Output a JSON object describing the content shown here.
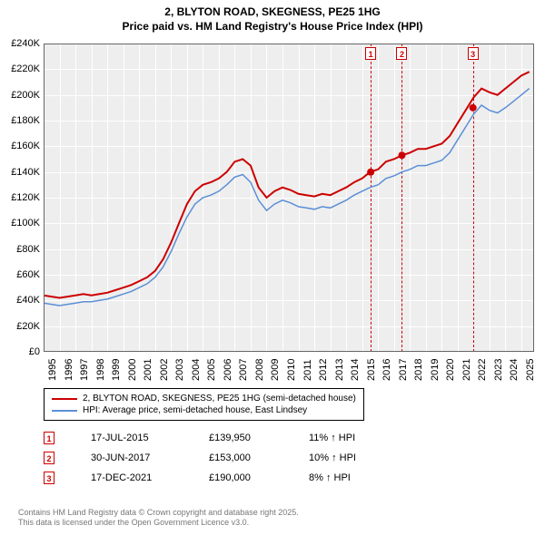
{
  "title_line1": "2, BLYTON ROAD, SKEGNESS, PE25 1HG",
  "title_line2": "Price paid vs. HM Land Registry's House Price Index (HPI)",
  "chart": {
    "type": "line",
    "background_color": "#eeeeee",
    "grid_color": "#ffffff",
    "border_color": "#666666",
    "xlim": [
      1995,
      2025.8
    ],
    "ylim": [
      0,
      240000
    ],
    "ytick_step": 20000,
    "ytick_labels": [
      "£0",
      "£20K",
      "£40K",
      "£60K",
      "£80K",
      "£100K",
      "£120K",
      "£140K",
      "£160K",
      "£180K",
      "£200K",
      "£220K",
      "£240K"
    ],
    "xtick_step": 1,
    "xtick_labels": [
      "1995",
      "1996",
      "1997",
      "1998",
      "1999",
      "2000",
      "2001",
      "2002",
      "2003",
      "2004",
      "2005",
      "2006",
      "2007",
      "2008",
      "2009",
      "2010",
      "2011",
      "2012",
      "2013",
      "2014",
      "2015",
      "2016",
      "2017",
      "2018",
      "2019",
      "2020",
      "2021",
      "2022",
      "2023",
      "2024",
      "2025"
    ],
    "series": [
      {
        "name": "2, BLYTON ROAD, SKEGNESS, PE25 1HG (semi-detached house)",
        "color": "#cc0000",
        "line_width": 2,
        "xy": [
          [
            1995,
            44000
          ],
          [
            1995.5,
            43000
          ],
          [
            1996,
            42000
          ],
          [
            1996.5,
            43000
          ],
          [
            1997,
            44000
          ],
          [
            1997.5,
            45000
          ],
          [
            1998,
            44000
          ],
          [
            1998.5,
            45000
          ],
          [
            1999,
            46000
          ],
          [
            1999.5,
            48000
          ],
          [
            2000,
            50000
          ],
          [
            2000.5,
            52000
          ],
          [
            2001,
            55000
          ],
          [
            2001.5,
            58000
          ],
          [
            2002,
            63000
          ],
          [
            2002.5,
            72000
          ],
          [
            2003,
            85000
          ],
          [
            2003.5,
            100000
          ],
          [
            2004,
            115000
          ],
          [
            2004.5,
            125000
          ],
          [
            2005,
            130000
          ],
          [
            2005.5,
            132000
          ],
          [
            2006,
            135000
          ],
          [
            2006.5,
            140000
          ],
          [
            2007,
            148000
          ],
          [
            2007.5,
            150000
          ],
          [
            2008,
            145000
          ],
          [
            2008.5,
            128000
          ],
          [
            2009,
            120000
          ],
          [
            2009.5,
            125000
          ],
          [
            2010,
            128000
          ],
          [
            2010.5,
            126000
          ],
          [
            2011,
            123000
          ],
          [
            2011.5,
            122000
          ],
          [
            2012,
            121000
          ],
          [
            2012.5,
            123000
          ],
          [
            2013,
            122000
          ],
          [
            2013.5,
            125000
          ],
          [
            2014,
            128000
          ],
          [
            2014.5,
            132000
          ],
          [
            2015,
            135000
          ],
          [
            2015.5,
            140000
          ],
          [
            2016,
            142000
          ],
          [
            2016.5,
            148000
          ],
          [
            2017,
            150000
          ],
          [
            2017.5,
            153000
          ],
          [
            2018,
            155000
          ],
          [
            2018.5,
            158000
          ],
          [
            2019,
            158000
          ],
          [
            2019.5,
            160000
          ],
          [
            2020,
            162000
          ],
          [
            2020.5,
            168000
          ],
          [
            2021,
            178000
          ],
          [
            2021.5,
            188000
          ],
          [
            2022,
            198000
          ],
          [
            2022.5,
            205000
          ],
          [
            2023,
            202000
          ],
          [
            2023.5,
            200000
          ],
          [
            2024,
            205000
          ],
          [
            2024.5,
            210000
          ],
          [
            2025,
            215000
          ],
          [
            2025.5,
            218000
          ]
        ],
        "markers": [
          {
            "id": "1",
            "x": 2015.54,
            "y": 139950
          },
          {
            "id": "2",
            "x": 2017.5,
            "y": 153000
          },
          {
            "id": "3",
            "x": 2021.96,
            "y": 190000
          }
        ]
      },
      {
        "name": "HPI: Average price, semi-detached house, East Lindsey",
        "color": "#5b8fd6",
        "line_width": 1.5,
        "xy": [
          [
            1995,
            38000
          ],
          [
            1995.5,
            37000
          ],
          [
            1996,
            36000
          ],
          [
            1996.5,
            37000
          ],
          [
            1997,
            38000
          ],
          [
            1997.5,
            39000
          ],
          [
            1998,
            39000
          ],
          [
            1998.5,
            40000
          ],
          [
            1999,
            41000
          ],
          [
            1999.5,
            43000
          ],
          [
            2000,
            45000
          ],
          [
            2000.5,
            47000
          ],
          [
            2001,
            50000
          ],
          [
            2001.5,
            53000
          ],
          [
            2002,
            58000
          ],
          [
            2002.5,
            66000
          ],
          [
            2003,
            78000
          ],
          [
            2003.5,
            92000
          ],
          [
            2004,
            105000
          ],
          [
            2004.5,
            115000
          ],
          [
            2005,
            120000
          ],
          [
            2005.5,
            122000
          ],
          [
            2006,
            125000
          ],
          [
            2006.5,
            130000
          ],
          [
            2007,
            136000
          ],
          [
            2007.5,
            138000
          ],
          [
            2008,
            132000
          ],
          [
            2008.5,
            118000
          ],
          [
            2009,
            110000
          ],
          [
            2009.5,
            115000
          ],
          [
            2010,
            118000
          ],
          [
            2010.5,
            116000
          ],
          [
            2011,
            113000
          ],
          [
            2011.5,
            112000
          ],
          [
            2012,
            111000
          ],
          [
            2012.5,
            113000
          ],
          [
            2013,
            112000
          ],
          [
            2013.5,
            115000
          ],
          [
            2014,
            118000
          ],
          [
            2014.5,
            122000
          ],
          [
            2015,
            125000
          ],
          [
            2015.5,
            128000
          ],
          [
            2016,
            130000
          ],
          [
            2016.5,
            135000
          ],
          [
            2017,
            137000
          ],
          [
            2017.5,
            140000
          ],
          [
            2018,
            142000
          ],
          [
            2018.5,
            145000
          ],
          [
            2019,
            145000
          ],
          [
            2019.5,
            147000
          ],
          [
            2020,
            149000
          ],
          [
            2020.5,
            155000
          ],
          [
            2021,
            165000
          ],
          [
            2021.5,
            175000
          ],
          [
            2022,
            185000
          ],
          [
            2022.5,
            192000
          ],
          [
            2023,
            188000
          ],
          [
            2023.5,
            186000
          ],
          [
            2024,
            190000
          ],
          [
            2024.5,
            195000
          ],
          [
            2025,
            200000
          ],
          [
            2025.5,
            205000
          ]
        ]
      }
    ],
    "event_lines": [
      2015.54,
      2017.5,
      2021.96
    ],
    "event_marker_boxes": [
      {
        "id": "1",
        "x": 2015.54
      },
      {
        "id": "2",
        "x": 2017.5
      },
      {
        "id": "3",
        "x": 2021.96
      }
    ]
  },
  "legend": {
    "items": [
      {
        "color": "#cc0000",
        "label": "2, BLYTON ROAD, SKEGNESS, PE25 1HG (semi-detached house)"
      },
      {
        "color": "#5b8fd6",
        "label": "HPI: Average price, semi-detached house, East Lindsey"
      }
    ]
  },
  "transactions": [
    {
      "id": "1",
      "date": "17-JUL-2015",
      "price": "£139,950",
      "hpi": "11% ↑ HPI"
    },
    {
      "id": "2",
      "date": "30-JUN-2017",
      "price": "£153,000",
      "hpi": "10% ↑ HPI"
    },
    {
      "id": "3",
      "date": "17-DEC-2021",
      "price": "£190,000",
      "hpi": "8% ↑ HPI"
    }
  ],
  "footer_line1": "Contains HM Land Registry data © Crown copyright and database right 2025.",
  "footer_line2": "This data is licensed under the Open Government Licence v3.0.",
  "colors": {
    "marker_border": "#cc0000",
    "footer_text": "#777777"
  }
}
